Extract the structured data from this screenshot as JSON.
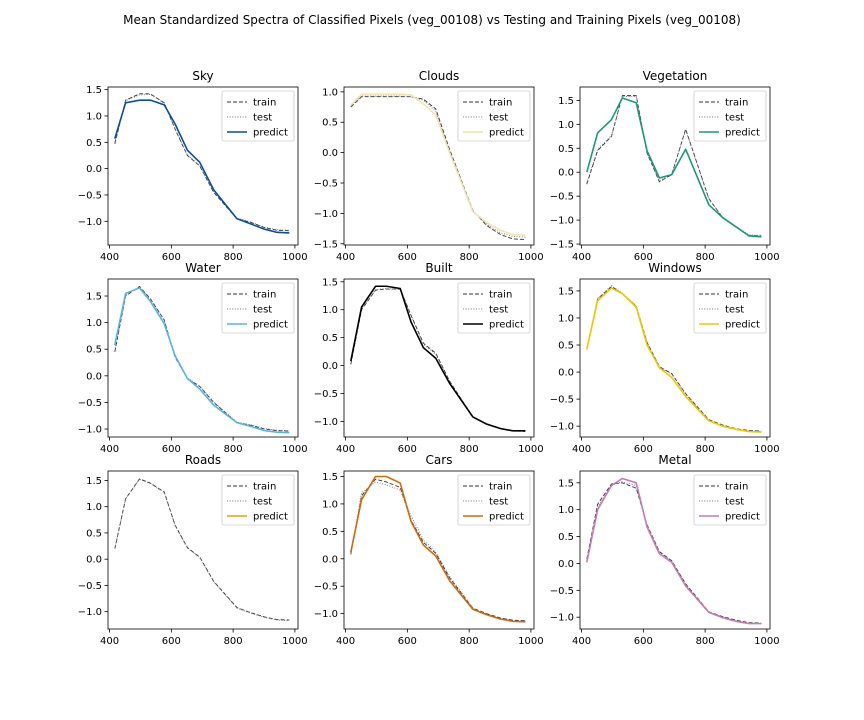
{
  "figure": {
    "suptitle": "Mean Standardized Spectra of Classified Pixels (veg_00108) vs Testing and Training Pixels (veg_00108)"
  },
  "legend_labels": [
    "train",
    "test",
    "predict"
  ],
  "chart_data": [
    {
      "type": "line",
      "title": "Sky",
      "xlim": [
        395,
        1010
      ],
      "ylim": [
        -1.45,
        1.55
      ],
      "xticks": [
        400,
        600,
        800,
        1000
      ],
      "yticks": [
        -1.0,
        -0.5,
        0.0,
        0.5,
        1.0,
        1.5
      ],
      "x": [
        417,
        452,
        497,
        532,
        577,
        612,
        652,
        692,
        737,
        812,
        857,
        902,
        942,
        982
      ],
      "series": [
        {
          "name": "train",
          "style": "dashed",
          "color": "#333333",
          "values": [
            0.47,
            1.3,
            1.42,
            1.42,
            1.25,
            0.75,
            0.25,
            0.05,
            -0.45,
            -0.95,
            -1.02,
            -1.12,
            -1.17,
            -1.18
          ]
        },
        {
          "name": "test",
          "style": "dotted",
          "color": "#777777",
          "values": [
            0.5,
            1.29,
            1.4,
            1.41,
            1.24,
            0.76,
            0.26,
            0.06,
            -0.44,
            -0.94,
            -1.01,
            -1.11,
            -1.16,
            -1.17
          ]
        },
        {
          "name": "predict",
          "style": "solid",
          "color": "#0a4f9a",
          "values": [
            0.57,
            1.25,
            1.3,
            1.3,
            1.21,
            0.85,
            0.35,
            0.12,
            -0.4,
            -0.95,
            -1.05,
            -1.15,
            -1.21,
            -1.22
          ]
        }
      ]
    },
    {
      "type": "line",
      "title": "Clouds",
      "xlim": [
        395,
        1010
      ],
      "ylim": [
        -1.52,
        1.08
      ],
      "xticks": [
        400,
        600,
        800,
        1000
      ],
      "yticks": [
        -1.5,
        -1.0,
        -0.5,
        0.0,
        0.5,
        1.0
      ],
      "x": [
        417,
        452,
        497,
        532,
        577,
        612,
        652,
        692,
        737,
        812,
        857,
        902,
        942,
        982
      ],
      "series": [
        {
          "name": "train",
          "style": "dashed",
          "color": "#333333",
          "values": [
            0.75,
            0.92,
            0.92,
            0.92,
            0.92,
            0.92,
            0.88,
            0.72,
            0.05,
            -0.95,
            -1.2,
            -1.35,
            -1.42,
            -1.43
          ]
        },
        {
          "name": "test",
          "style": "dotted",
          "color": "#777777",
          "values": [
            0.76,
            0.93,
            0.93,
            0.93,
            0.93,
            0.92,
            0.86,
            0.68,
            0.02,
            -0.96,
            -1.18,
            -1.32,
            -1.38,
            -1.39
          ]
        },
        {
          "name": "predict",
          "style": "solid",
          "color": "#efe3b0",
          "values": [
            0.78,
            0.96,
            0.96,
            0.96,
            0.96,
            0.95,
            0.8,
            0.62,
            0.0,
            -0.97,
            -1.15,
            -1.28,
            -1.35,
            -1.36
          ]
        }
      ]
    },
    {
      "type": "line",
      "title": "Vegetation",
      "xlim": [
        395,
        1010
      ],
      "ylim": [
        -1.52,
        1.78
      ],
      "xticks": [
        400,
        600,
        800,
        1000
      ],
      "yticks": [
        -1.5,
        -1.0,
        -0.5,
        0.0,
        0.5,
        1.0,
        1.5
      ],
      "x": [
        417,
        452,
        497,
        532,
        577,
        612,
        652,
        692,
        737,
        812,
        857,
        902,
        942,
        982
      ],
      "series": [
        {
          "name": "train",
          "style": "dashed",
          "color": "#333333",
          "values": [
            -0.25,
            0.45,
            0.75,
            1.6,
            1.6,
            0.4,
            -0.2,
            -0.05,
            0.9,
            -0.55,
            -0.95,
            -1.15,
            -1.32,
            -1.33
          ]
        },
        {
          "name": "test",
          "style": "dotted",
          "color": "#777777",
          "values": [
            -0.22,
            0.48,
            0.77,
            1.58,
            1.58,
            0.41,
            -0.18,
            -0.04,
            0.88,
            -0.56,
            -0.94,
            -1.14,
            -1.31,
            -1.32
          ]
        },
        {
          "name": "predict",
          "style": "solid",
          "color": "#1a9a7a",
          "values": [
            0.0,
            0.82,
            1.1,
            1.55,
            1.45,
            0.45,
            -0.12,
            -0.05,
            0.48,
            -0.68,
            -0.95,
            -1.15,
            -1.33,
            -1.35
          ]
        }
      ]
    },
    {
      "type": "line",
      "title": "Water",
      "xlim": [
        395,
        1010
      ],
      "ylim": [
        -1.15,
        1.82
      ],
      "xticks": [
        400,
        600,
        800,
        1000
      ],
      "yticks": [
        -1.0,
        -0.5,
        0.0,
        0.5,
        1.0,
        1.5
      ],
      "x": [
        417,
        452,
        497,
        532,
        577,
        612,
        652,
        692,
        737,
        812,
        857,
        902,
        942,
        982
      ],
      "series": [
        {
          "name": "train",
          "style": "dashed",
          "color": "#333333",
          "values": [
            0.45,
            1.5,
            1.68,
            1.45,
            1.05,
            0.35,
            -0.05,
            -0.2,
            -0.5,
            -0.88,
            -0.93,
            -1.0,
            -1.03,
            -1.04
          ]
        },
        {
          "name": "test",
          "style": "dotted",
          "color": "#777777",
          "values": [
            0.48,
            1.52,
            1.67,
            1.44,
            1.04,
            0.36,
            -0.04,
            -0.19,
            -0.49,
            -0.87,
            -0.92,
            -0.99,
            -1.02,
            -1.03
          ]
        },
        {
          "name": "predict",
          "style": "solid",
          "color": "#5ab4e0",
          "values": [
            0.58,
            1.55,
            1.65,
            1.4,
            0.98,
            0.38,
            -0.05,
            -0.25,
            -0.55,
            -0.88,
            -0.95,
            -1.03,
            -1.06,
            -1.07
          ]
        }
      ]
    },
    {
      "type": "line",
      "title": "Built",
      "xlim": [
        395,
        1010
      ],
      "ylim": [
        -1.28,
        1.55
      ],
      "xticks": [
        400,
        600,
        800,
        1000
      ],
      "yticks": [
        -1.0,
        -0.5,
        0.0,
        0.5,
        1.0,
        1.5
      ],
      "x": [
        417,
        452,
        497,
        532,
        577,
        612,
        652,
        692,
        737,
        812,
        857,
        902,
        942,
        982
      ],
      "series": [
        {
          "name": "train",
          "style": "dashed",
          "color": "#333333",
          "values": [
            0.02,
            1.0,
            1.35,
            1.37,
            1.37,
            0.9,
            0.4,
            0.22,
            -0.28,
            -0.92,
            -1.05,
            -1.13,
            -1.17,
            -1.18
          ]
        },
        {
          "name": "test",
          "style": "dotted",
          "color": "#777777",
          "values": [
            0.05,
            1.02,
            1.36,
            1.38,
            1.36,
            0.88,
            0.38,
            0.2,
            -0.3,
            -0.91,
            -1.04,
            -1.12,
            -1.16,
            -1.17
          ]
        },
        {
          "name": "predict",
          "style": "solid",
          "color": "#000000",
          "values": [
            0.08,
            1.05,
            1.42,
            1.42,
            1.38,
            0.78,
            0.32,
            0.13,
            -0.32,
            -0.92,
            -1.05,
            -1.13,
            -1.17,
            -1.17
          ]
        }
      ]
    },
    {
      "type": "line",
      "title": "Windows",
      "xlim": [
        395,
        1010
      ],
      "ylim": [
        -1.2,
        1.72
      ],
      "xticks": [
        400,
        600,
        800,
        1000
      ],
      "yticks": [
        -1.0,
        -0.5,
        0.0,
        0.5,
        1.0,
        1.5
      ],
      "x": [
        417,
        452,
        497,
        532,
        577,
        612,
        652,
        692,
        737,
        812,
        857,
        902,
        942,
        982
      ],
      "series": [
        {
          "name": "train",
          "style": "dashed",
          "color": "#333333",
          "values": [
            0.42,
            1.35,
            1.58,
            1.45,
            1.22,
            0.55,
            0.1,
            -0.03,
            -0.4,
            -0.88,
            -0.98,
            -1.05,
            -1.08,
            -1.09
          ]
        },
        {
          "name": "test",
          "style": "dotted",
          "color": "#777777",
          "values": [
            0.43,
            1.36,
            1.6,
            1.46,
            1.22,
            0.55,
            0.09,
            -0.04,
            -0.41,
            -0.89,
            -0.99,
            -1.06,
            -1.09,
            -1.1
          ]
        },
        {
          "name": "predict",
          "style": "solid",
          "color": "#f0c800",
          "values": [
            0.42,
            1.32,
            1.55,
            1.45,
            1.2,
            0.5,
            0.08,
            -0.1,
            -0.45,
            -0.9,
            -1.0,
            -1.06,
            -1.1,
            -1.11
          ]
        }
      ]
    },
    {
      "type": "line",
      "title": "Roads",
      "xlim": [
        395,
        1010
      ],
      "ylim": [
        -1.33,
        1.68
      ],
      "xticks": [
        400,
        600,
        800,
        1000
      ],
      "yticks": [
        -1.0,
        -0.5,
        0.0,
        0.5,
        1.0,
        1.5
      ],
      "x": [
        417,
        452,
        497,
        532,
        577,
        612,
        652,
        692,
        737,
        812,
        857,
        902,
        942,
        982
      ],
      "series": [
        {
          "name": "train",
          "style": "dashed",
          "color": "#333333",
          "values": [
            0.2,
            1.15,
            1.53,
            1.45,
            1.28,
            0.65,
            0.22,
            0.04,
            -0.42,
            -0.92,
            -1.02,
            -1.1,
            -1.15,
            -1.16
          ]
        },
        {
          "name": "test",
          "style": "dotted",
          "color": "#777777",
          "values": [
            0.2,
            1.15,
            1.52,
            1.44,
            1.27,
            0.64,
            0.21,
            0.03,
            -0.43,
            -0.93,
            -1.03,
            -1.11,
            -1.16,
            -1.17
          ]
        }
      ]
    },
    {
      "type": "line",
      "title": "Cars",
      "xlim": [
        395,
        1010
      ],
      "ylim": [
        -1.28,
        1.6
      ],
      "xticks": [
        400,
        600,
        800,
        1000
      ],
      "yticks": [
        -1.0,
        -0.5,
        0.0,
        0.5,
        1.0,
        1.5
      ],
      "x": [
        417,
        452,
        497,
        532,
        577,
        612,
        652,
        692,
        737,
        812,
        857,
        902,
        942,
        982
      ],
      "series": [
        {
          "name": "train",
          "style": "dashed",
          "color": "#333333",
          "values": [
            0.08,
            1.15,
            1.45,
            1.4,
            1.3,
            0.7,
            0.3,
            0.1,
            -0.35,
            -0.9,
            -1.0,
            -1.08,
            -1.12,
            -1.13
          ]
        },
        {
          "name": "test",
          "style": "dotted",
          "color": "#777777",
          "values": [
            0.1,
            1.2,
            1.4,
            1.35,
            1.25,
            0.78,
            0.35,
            0.12,
            -0.32,
            -0.9,
            -1.01,
            -1.09,
            -1.13,
            -1.14
          ]
        },
        {
          "name": "predict",
          "style": "solid",
          "color": "#d06a10",
          "values": [
            0.12,
            1.08,
            1.5,
            1.5,
            1.38,
            0.68,
            0.25,
            0.05,
            -0.4,
            -0.92,
            -1.02,
            -1.1,
            -1.14,
            -1.15
          ]
        }
      ]
    },
    {
      "type": "line",
      "title": "Metal",
      "xlim": [
        395,
        1010
      ],
      "ylim": [
        -1.22,
        1.72
      ],
      "xticks": [
        400,
        600,
        800,
        1000
      ],
      "yticks": [
        -1.0,
        -0.5,
        0.0,
        0.5,
        1.0,
        1.5
      ],
      "x": [
        417,
        452,
        497,
        532,
        577,
        612,
        652,
        692,
        737,
        812,
        857,
        902,
        942,
        982
      ],
      "series": [
        {
          "name": "train",
          "style": "dashed",
          "color": "#333333",
          "values": [
            0.08,
            1.1,
            1.48,
            1.5,
            1.4,
            0.72,
            0.22,
            0.05,
            -0.38,
            -0.9,
            -0.99,
            -1.06,
            -1.1,
            -1.11
          ]
        },
        {
          "name": "test",
          "style": "dotted",
          "color": "#777777",
          "values": [
            0.05,
            1.05,
            1.45,
            1.52,
            1.45,
            0.7,
            0.2,
            0.04,
            -0.4,
            -0.9,
            -1.0,
            -1.07,
            -1.11,
            -1.12
          ]
        },
        {
          "name": "predict",
          "style": "solid",
          "color": "#c77cb8",
          "values": [
            0.02,
            1.0,
            1.45,
            1.58,
            1.5,
            0.68,
            0.18,
            0.02,
            -0.42,
            -0.91,
            -1.01,
            -1.08,
            -1.12,
            -1.12
          ]
        }
      ]
    }
  ]
}
